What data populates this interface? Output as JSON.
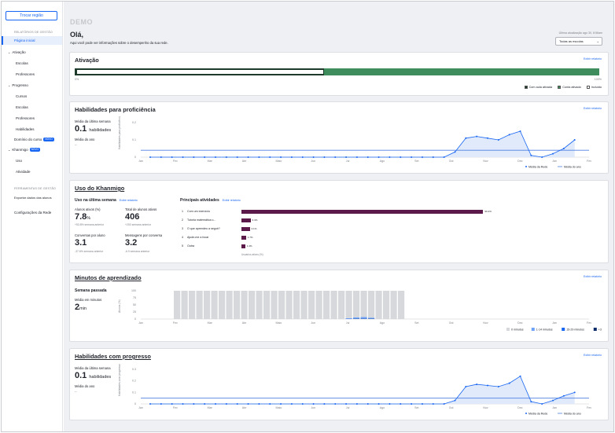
{
  "sidebar": {
    "switch_button": "Trocar região",
    "reports_heading": "RELATÓRIOS DE GESTÃO",
    "home": "Página inicial",
    "activation": "Ativação",
    "activation_items": [
      "Escolas",
      "Professores"
    ],
    "progress": "Progresso",
    "progress_items": [
      "Cursos",
      "Escolas",
      "Professores",
      "Habilidades"
    ],
    "course_mastery": "Domínio do curso",
    "badge_new": "NOVO",
    "khanmigo": "Khanmigo",
    "khanmigo_items": [
      "Uso",
      "Atividade"
    ],
    "tools_heading": "FERRAMENTAS DE GESTÃO",
    "export": "Exportar dados das alunos",
    "network_settings": "Configurações da Rede"
  },
  "header": {
    "demo": "DEMO",
    "greeting": "Olá,",
    "subtitle": "Aqui você pode ver informações sobre o desempenho da sua rede.",
    "last_update": "Última atualização ago 30, 8:56am",
    "school_select": "Todas as escolas"
  },
  "activation": {
    "title": "Ativação",
    "report_link": "Exibir relatório",
    "axis_left": "0%",
    "axis_right": "100%",
    "legend": [
      "Com aula ativada",
      "Conta ativada",
      "Incluído"
    ],
    "colors": {
      "dark": "#1e3a2a",
      "green": "#3f8d5c"
    }
  },
  "skills_proficiency": {
    "title": "Habilidades para proficiência",
    "report_link": "Exibir relatório",
    "weekly_avg_label": "Média da última semana",
    "weekly_avg_value": "0.1",
    "weekly_avg_unit": "habilidades",
    "yearly_avg_label": "Média do ano",
    "yearly_avg_value": "--",
    "y_axis_label": "Habilidades para proficiência",
    "legend": [
      "Média da Rede",
      "Média do ano"
    ]
  },
  "khanmigo_usage": {
    "title": "Uso do Khanmigo",
    "last_week_heading": "Uso na última semana",
    "report_link": "Exibir relatório",
    "stats": [
      {
        "label": "Alunos ativos (%)",
        "value": "7.8",
        "unit": "%",
        "sub": "+53.8% semana anterior"
      },
      {
        "label": "Total de alunos ativos",
        "value": "406",
        "unit": "",
        "sub": "+200 semana anterior"
      },
      {
        "label": "Conversas por aluno",
        "value": "3.1",
        "unit": "",
        "sub": "-37.6% semana anterior"
      },
      {
        "label": "Mensagens por conversa",
        "value": "3.2",
        "unit": "",
        "sub": "-6.9 semana anterior"
      }
    ],
    "top_activities_heading": "Principais atividades",
    "top_activities_link": "Exibir relatório",
    "top_activities": [
      {
        "rank": "1",
        "label": "Com um exercício",
        "pct": "90.4%",
        "value": 90.4
      },
      {
        "rank": "2",
        "label": "Tutoria matemática c...",
        "pct": "3.4%",
        "value": 3.4
      },
      {
        "rank": "3",
        "label": "O que aprendeu a seguir?",
        "pct": "3.1%",
        "value": 3.1
      },
      {
        "rank": "4",
        "label": "Ajude-me a focar",
        "pct": "1.7%",
        "value": 1.7
      },
      {
        "rank": "5",
        "label": "Outra",
        "pct": "1.4%",
        "value": 1.4
      }
    ],
    "activities_axis": "Usuários ativos (%)"
  },
  "learning_minutes": {
    "title": "Minutos de aprendizado",
    "report_link": "Exibir relatório",
    "last_week_label": "Semana passada",
    "avg_label": "Média em minutos",
    "avg_value": "2",
    "avg_unit": "min",
    "y_axis_label": "Alunos (%)",
    "legend": [
      "0 minutos",
      "1-14 minutos",
      "15-29 minutos",
      "+30 minutos"
    ],
    "colors": {
      "zero": "#d6d8dc",
      "low": "#6fa3f7",
      "mid": "#1865f2",
      "high": "#0b2b6b"
    }
  },
  "skills_progress": {
    "title": "Habilidades com progresso",
    "report_link": "Exibir relatório",
    "weekly_avg_label": "Média da última semana",
    "weekly_avg_value": "0.1",
    "weekly_avg_unit": "habilidades",
    "yearly_avg_label": "Média do ano",
    "yearly_avg_value": "--",
    "y_axis_label": "Habilidades com progresso",
    "legend": [
      "Média da Rede",
      "Média do ano"
    ]
  },
  "chart_data": [
    {
      "type": "line",
      "months": [
        "Jan",
        "Fev",
        "Mar",
        "Abr",
        "Maio",
        "Jun",
        "Jul",
        "Ago",
        "Set",
        "Out",
        "Nov",
        "Dez",
        "Jan",
        "Fev"
      ],
      "yticks": [
        "0",
        "0.1",
        "0.2"
      ],
      "ylim": [
        0,
        0.2
      ],
      "series": [
        {
          "name": "Média da Rede",
          "values": [
            0,
            0,
            0,
            0,
            0,
            0,
            0,
            0,
            0,
            0,
            0,
            0,
            0,
            0,
            0,
            0,
            0,
            0,
            0,
            0,
            0,
            0,
            0,
            0,
            0,
            0,
            0,
            0,
            0.03,
            0.11,
            0.12,
            0.11,
            0.1,
            0.13,
            0.15,
            0.01,
            0,
            0.02,
            0.05,
            0.1
          ]
        },
        {
          "name": "Média do ano",
          "values": [
            0.04
          ]
        }
      ]
    },
    {
      "type": "bar",
      "months": [
        "Jan",
        "Fev",
        "Mar",
        "Abr",
        "Maio",
        "Jun",
        "Jul",
        "Ago",
        "Set",
        "Out",
        "Nov",
        "Dez",
        "Jan",
        "Fev"
      ],
      "yticks": [
        "0",
        "25",
        "50",
        "75",
        "100"
      ],
      "ylim": [
        0,
        100
      ],
      "series": [
        {
          "name": "0 minutos",
          "values": [
            100,
            100,
            100,
            100,
            100,
            100,
            100,
            100,
            100,
            100,
            100,
            100,
            100,
            100,
            100,
            100,
            100,
            100,
            100,
            100,
            100,
            100,
            100,
            97,
            94,
            93,
            95,
            100,
            100,
            100,
            100
          ]
        },
        {
          "name": "1-14 minutos",
          "values": [
            0,
            0,
            0,
            0,
            0,
            0,
            0,
            0,
            0,
            0,
            0,
            0,
            0,
            0,
            0,
            0,
            0,
            0,
            0,
            0,
            0,
            0,
            0,
            2,
            4,
            5,
            3,
            0,
            0,
            0,
            0
          ]
        },
        {
          "name": "15-29 minutos",
          "values": [
            0,
            0,
            0,
            0,
            0,
            0,
            0,
            0,
            0,
            0,
            0,
            0,
            0,
            0,
            0,
            0,
            0,
            0,
            0,
            0,
            0,
            0,
            0,
            1,
            1,
            1,
            1,
            0,
            0,
            0,
            0
          ]
        },
        {
          "name": "+30 minutos",
          "values": [
            0,
            0,
            0,
            0,
            0,
            0,
            0,
            0,
            0,
            0,
            0,
            0,
            0,
            0,
            0,
            0,
            0,
            0,
            0,
            0,
            0,
            0,
            0,
            0,
            1,
            1,
            1,
            0,
            0,
            0,
            0
          ]
        }
      ]
    },
    {
      "type": "line",
      "months": [
        "Jan",
        "Fev",
        "Mar",
        "Abr",
        "Maio",
        "Jun",
        "Jul",
        "Ago",
        "Set",
        "Out",
        "Nov",
        "Dez",
        "Jan",
        "Fev"
      ],
      "yticks": [
        "0",
        "0.1",
        "0.2",
        "0.3"
      ],
      "ylim": [
        0,
        0.3
      ],
      "series": [
        {
          "name": "Média da Rede",
          "values": [
            0,
            0,
            0,
            0,
            0,
            0,
            0,
            0,
            0,
            0,
            0,
            0,
            0,
            0,
            0,
            0,
            0,
            0,
            0,
            0,
            0,
            0,
            0,
            0,
            0,
            0,
            0,
            0,
            0.03,
            0.15,
            0.17,
            0.16,
            0.15,
            0.18,
            0.24,
            0.02,
            0,
            0.03,
            0.07,
            0.1
          ]
        },
        {
          "name": "Média do ano",
          "values": [
            0.05
          ]
        }
      ]
    }
  ]
}
